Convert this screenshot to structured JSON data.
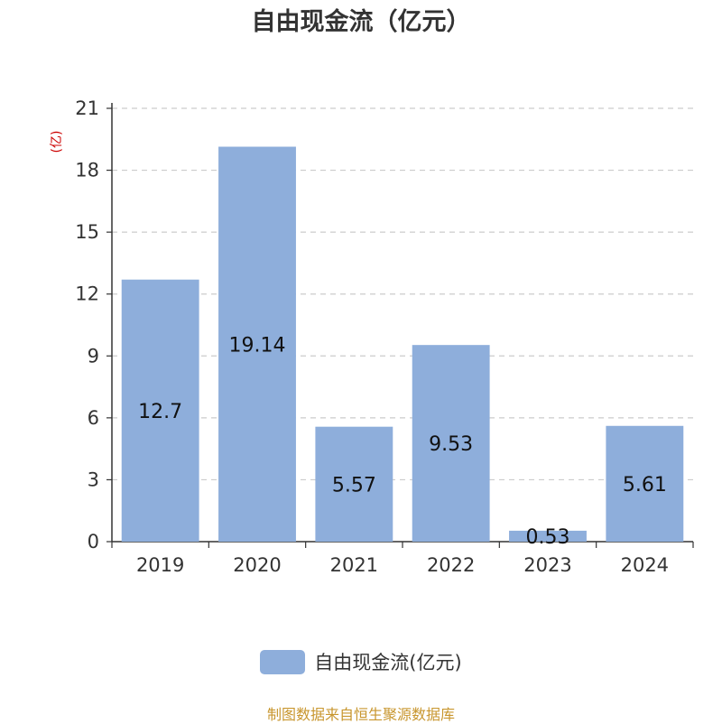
{
  "chart_data": {
    "type": "bar",
    "title": "自由现金流（亿元）",
    "ylabel": "(亿)",
    "categories": [
      "2019",
      "2020",
      "2021",
      "2022",
      "2023",
      "2024"
    ],
    "series": [
      {
        "name": "自由现金流(亿元)",
        "values": [
          12.7,
          19.14,
          5.57,
          9.53,
          0.53,
          5.61
        ]
      }
    ],
    "data_labels": [
      "12.7",
      "19.14",
      "5.57",
      "9.53",
      "0.53",
      "5.61"
    ],
    "yticks": [
      0,
      3,
      6,
      9,
      12,
      15,
      18,
      21
    ],
    "ylim": [
      0,
      21
    ],
    "grid": true,
    "legend": "bottom-center",
    "colors": {
      "bar": "#8eaedb",
      "ylabel": "#cc0000",
      "source": "#c8962e"
    }
  },
  "footer": {
    "source": "制图数据来自恒生聚源数据库"
  }
}
